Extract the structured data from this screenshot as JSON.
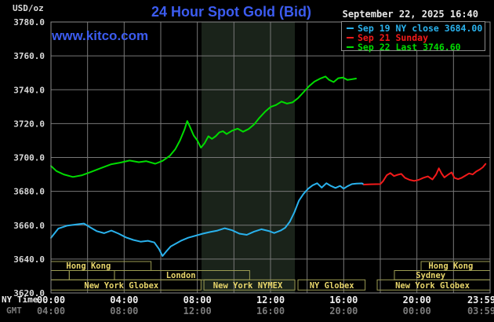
{
  "header": {
    "unit_label": "USD/oz",
    "title": "24 Hour Spot Gold (Bid)",
    "watermark": "www.kitco.com",
    "datetime": "September 22, 2025 16:40"
  },
  "legend": {
    "items": [
      {
        "label": "Sep 19 NY close 3684.00",
        "color": "#29b1ec"
      },
      {
        "label": "Sep 21 Sunday",
        "color": "#f21a1a"
      },
      {
        "label": "Sep 22 Last 3746.60",
        "color": "#00dc00"
      }
    ]
  },
  "axes": {
    "ny_time_label": "NY Time",
    "gmt_label": "GMT",
    "x_ticks_ny": [
      "00:00",
      "04:00",
      "08:00",
      "12:00",
      "16:00",
      "20:00",
      "23:59"
    ],
    "x_ticks_gmt": [
      "04:00",
      "08:00",
      "12:00",
      "16:00",
      "20:00",
      "00:00",
      "03:59"
    ],
    "x_tick_hours": [
      0,
      4,
      8,
      12,
      16,
      20,
      23.75
    ],
    "y_ticks": [
      "3780.0",
      "3760.0",
      "3740.0",
      "3720.0",
      "3700.0",
      "3680.0",
      "3660.0",
      "3640.0",
      "3620.0"
    ]
  },
  "colors": {
    "background": "#000000",
    "gridline": "#777777",
    "plot_border": "#8a8a8a",
    "session_shade": "#1a231a",
    "session_border": "#9b9b52",
    "session_text": "#e8d66b",
    "title_blue": "#3c5cf0",
    "cyan_line": "#29b1ec",
    "red_line": "#f21a1a",
    "green_line": "#00dc00"
  },
  "sessions": {
    "rows": [
      {
        "boxes": [
          [
            0,
            5.47
          ],
          [
            20.23,
            24
          ]
        ],
        "labels": [
          {
            "hour": 2.05,
            "text": "Hong Kong"
          },
          {
            "hour": 21.85,
            "text": "Hong Kong"
          }
        ]
      },
      {
        "boxes": [
          [
            0,
            1.0
          ],
          [
            1.0,
            3.47
          ],
          [
            3.47,
            10.86
          ],
          [
            18.77,
            24
          ]
        ],
        "labels": [
          {
            "hour": 7.1,
            "text": "London"
          },
          {
            "hour": 20.75,
            "text": "Sydney"
          }
        ]
      },
      {
        "boxes": [
          [
            0,
            8.2
          ],
          [
            8.36,
            13.33
          ],
          [
            13.5,
            17.17
          ],
          [
            17.83,
            24
          ]
        ],
        "labels": [
          {
            "hour": 3.85,
            "text": "New York Globex"
          },
          {
            "hour": 10.76,
            "text": "New York NYMEX"
          },
          {
            "hour": 15.35,
            "text": "NY Globex"
          },
          {
            "hour": 20.85,
            "text": "New York Globex"
          }
        ]
      }
    ]
  },
  "chart_data": {
    "type": "line",
    "title": "24 Hour Spot Gold (Bid)",
    "xlabel": "NY Time (hours, 00:00-23:59)",
    "ylabel": "USD/oz",
    "xlim": [
      0,
      24
    ],
    "ylim": [
      3620,
      3780
    ],
    "grid": true,
    "x_gridline_interval_hours": 2,
    "y_gridline_interval": 20,
    "shaded_session_hours": [
      8.23,
      13.33
    ],
    "series": [
      {
        "key": "sep19",
        "name": "Sep 19 NY close 3684.00",
        "color": "#29b1ec",
        "points": [
          [
            0,
            3652.5
          ],
          [
            0.4,
            3658
          ],
          [
            0.9,
            3659.8
          ],
          [
            1.4,
            3660.5
          ],
          [
            1.8,
            3661
          ],
          [
            2.1,
            3659
          ],
          [
            2.5,
            3656.5
          ],
          [
            2.9,
            3655.3
          ],
          [
            3.3,
            3656.8
          ],
          [
            3.7,
            3655
          ],
          [
            4.1,
            3652.8
          ],
          [
            4.5,
            3651.3
          ],
          [
            4.9,
            3650.3
          ],
          [
            5.3,
            3650.8
          ],
          [
            5.65,
            3649.8
          ],
          [
            5.9,
            3646
          ],
          [
            6.1,
            3641.8
          ],
          [
            6.3,
            3644.5
          ],
          [
            6.55,
            3647.5
          ],
          [
            6.8,
            3649
          ],
          [
            7.1,
            3650.8
          ],
          [
            7.5,
            3652.6
          ],
          [
            7.9,
            3653.8
          ],
          [
            8.3,
            3655
          ],
          [
            8.7,
            3656
          ],
          [
            9.1,
            3656.8
          ],
          [
            9.5,
            3658.2
          ],
          [
            9.9,
            3657
          ],
          [
            10.3,
            3655
          ],
          [
            10.7,
            3654.3
          ],
          [
            11.1,
            3656.2
          ],
          [
            11.5,
            3657.6
          ],
          [
            11.9,
            3656.6
          ],
          [
            12.2,
            3655.4
          ],
          [
            12.55,
            3656.8
          ],
          [
            12.8,
            3658.5
          ],
          [
            13.05,
            3662
          ],
          [
            13.3,
            3667.5
          ],
          [
            13.55,
            3674.5
          ],
          [
            13.8,
            3678.5
          ],
          [
            14.05,
            3681.5
          ],
          [
            14.3,
            3683.6
          ],
          [
            14.55,
            3684.8
          ],
          [
            14.8,
            3682.2
          ],
          [
            15.05,
            3684.8
          ],
          [
            15.3,
            3683.2
          ],
          [
            15.55,
            3682
          ],
          [
            15.8,
            3683.2
          ],
          [
            16.0,
            3681.6
          ],
          [
            16.2,
            3683
          ],
          [
            16.45,
            3684.3
          ],
          [
            16.7,
            3684.6
          ],
          [
            17.0,
            3684.7
          ],
          [
            17.1,
            3684.0
          ]
        ]
      },
      {
        "key": "sep21",
        "name": "Sep 21 Sunday",
        "color": "#f21a1a",
        "points": [
          [
            17.1,
            3684
          ],
          [
            17.5,
            3684.2
          ],
          [
            18.0,
            3684.3
          ],
          [
            18.15,
            3686
          ],
          [
            18.35,
            3689.5
          ],
          [
            18.55,
            3690.8
          ],
          [
            18.75,
            3689
          ],
          [
            18.95,
            3689.8
          ],
          [
            19.15,
            3690.3
          ],
          [
            19.35,
            3688
          ],
          [
            19.6,
            3686.8
          ],
          [
            19.85,
            3686.2
          ],
          [
            20.1,
            3686.8
          ],
          [
            20.35,
            3688
          ],
          [
            20.6,
            3688.8
          ],
          [
            20.85,
            3687
          ],
          [
            21.05,
            3690
          ],
          [
            21.2,
            3693.6
          ],
          [
            21.35,
            3690.5
          ],
          [
            21.5,
            3688.2
          ],
          [
            21.7,
            3689.8
          ],
          [
            21.9,
            3691.2
          ],
          [
            22.05,
            3688
          ],
          [
            22.25,
            3687.2
          ],
          [
            22.45,
            3688
          ],
          [
            22.65,
            3689.3
          ],
          [
            22.85,
            3690.6
          ],
          [
            23.05,
            3690
          ],
          [
            23.25,
            3691.8
          ],
          [
            23.45,
            3693
          ],
          [
            23.6,
            3694.2
          ],
          [
            23.75,
            3696.2
          ]
        ]
      },
      {
        "key": "sep22",
        "name": "Sep 22 Last 3746.60",
        "color": "#00dc00",
        "points": [
          [
            0,
            3695
          ],
          [
            0.3,
            3692
          ],
          [
            0.7,
            3690
          ],
          [
            1.2,
            3688.5
          ],
          [
            1.7,
            3689.5
          ],
          [
            2.2,
            3691.5
          ],
          [
            2.8,
            3694
          ],
          [
            3.3,
            3696
          ],
          [
            3.8,
            3697
          ],
          [
            4.3,
            3698.2
          ],
          [
            4.8,
            3697.2
          ],
          [
            5.2,
            3697.8
          ],
          [
            5.7,
            3696.3
          ],
          [
            6.1,
            3698
          ],
          [
            6.5,
            3701
          ],
          [
            6.8,
            3705
          ],
          [
            7.05,
            3710
          ],
          [
            7.3,
            3716.5
          ],
          [
            7.45,
            3721.5
          ],
          [
            7.6,
            3718
          ],
          [
            7.8,
            3713
          ],
          [
            8.0,
            3710
          ],
          [
            8.2,
            3705.8
          ],
          [
            8.4,
            3708.5
          ],
          [
            8.6,
            3712.5
          ],
          [
            8.8,
            3711
          ],
          [
            9.0,
            3712.5
          ],
          [
            9.2,
            3714.8
          ],
          [
            9.4,
            3715.5
          ],
          [
            9.6,
            3713.8
          ],
          [
            9.9,
            3715.8
          ],
          [
            10.2,
            3717
          ],
          [
            10.5,
            3715.2
          ],
          [
            10.8,
            3716.8
          ],
          [
            11.1,
            3719.5
          ],
          [
            11.4,
            3723.5
          ],
          [
            11.7,
            3727
          ],
          [
            12.0,
            3729.8
          ],
          [
            12.3,
            3731
          ],
          [
            12.6,
            3733
          ],
          [
            12.9,
            3731.8
          ],
          [
            13.2,
            3732.5
          ],
          [
            13.5,
            3735
          ],
          [
            13.8,
            3738.5
          ],
          [
            14.1,
            3742
          ],
          [
            14.4,
            3744.8
          ],
          [
            14.7,
            3746.5
          ],
          [
            15.0,
            3747.8
          ],
          [
            15.2,
            3745.8
          ],
          [
            15.45,
            3744.5
          ],
          [
            15.7,
            3746.8
          ],
          [
            15.95,
            3747.2
          ],
          [
            16.2,
            3745.8
          ],
          [
            16.45,
            3746.2
          ],
          [
            16.67,
            3746.6
          ]
        ]
      }
    ]
  }
}
